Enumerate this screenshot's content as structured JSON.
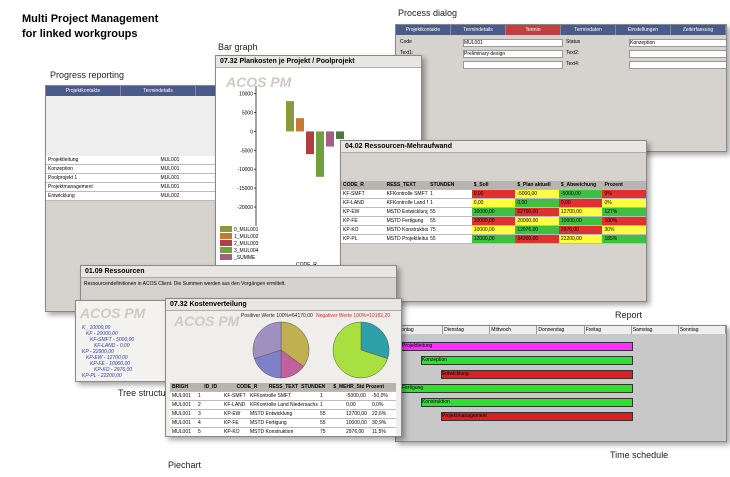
{
  "heading": [
    "Multi Project Management",
    "for linked workgroups"
  ],
  "captions": {
    "process_dialog": "Process dialog",
    "bar_graph": "Bar graph",
    "progress_reporting": "Progress reporting",
    "report": "Report",
    "tree_structure": "Tree structure",
    "piechart": "Piechart",
    "time_schedule": "Time schedule"
  },
  "process_dialog": {
    "tabs": [
      "Projektkontakte",
      "Termindetails",
      "Termin",
      "Termindaten",
      "Einstellungen",
      "Zeiterfassung"
    ],
    "fields": [
      "Code",
      "Status",
      "Text1:",
      "Text2:",
      "Text3:",
      "Text4:"
    ],
    "texts": [
      "MUL001",
      "Konzeption",
      "Preliminary design"
    ]
  },
  "bar_graph": {
    "title": "07.32 Plankosten je Projekt / Poolprojekt",
    "logo": "ACOS PM",
    "ylim": [
      -25000,
      12000
    ],
    "yticks": [
      10000,
      5000,
      0,
      -5000,
      -10000,
      -15000,
      -20000
    ],
    "values": [
      8000,
      3500,
      -6000,
      -12000,
      -4000,
      -2000
    ],
    "colors": [
      "#8a9a3a",
      "#c87830",
      "#b04040",
      "#70a040",
      "#a06080",
      "#4a7a40"
    ],
    "legend": [
      "0_MUL001",
      "1_MUL002",
      "2_MUL003",
      "3_MUL004",
      "_SUMME"
    ],
    "xlabel": "CODE_R"
  },
  "progress": {
    "tabs": [
      "Projektkontakte",
      "Termindetails",
      "Termin"
    ],
    "rows": [
      [
        "Projektleitung",
        "MUL001"
      ],
      [
        "Konzeption",
        "MUL001"
      ],
      [
        "Poolprojekt 1",
        "MUL001"
      ],
      [
        "Projektmanagement",
        "MUL001"
      ],
      [
        "Entwicklung",
        "MUL002"
      ]
    ]
  },
  "resources": {
    "title": "04.02 Ressourcen-Mehraufwand",
    "columns": [
      "CODE_R",
      "RESS_TEXT",
      "STUNDEN",
      "$_Soll",
      "$_Plan aktuell",
      "$_Abweichung",
      "Prozent"
    ],
    "rows": [
      [
        "KF-SMFT",
        "KFKontrolle SMFT",
        "1",
        "0,00",
        "-5000,00",
        "-5000,00",
        "0%"
      ],
      [
        "KF-LAND",
        "KFKontrolle Land Niedersachsen",
        "1",
        "0,00",
        "0,00",
        "0,00",
        "0%"
      ],
      [
        "KP-EW",
        "MSTD Entwicklung",
        "55",
        "10000,00",
        "22700,00",
        "12700,00",
        "127%"
      ],
      [
        "KP-FE",
        "MSTD Fertigung",
        "55",
        "10000,00",
        "20000,00",
        "10000,00",
        "100%"
      ],
      [
        "KP-KO",
        "MSTD Konstruktion",
        "75",
        "10000,00",
        "12976,00",
        "2976,00",
        "30%"
      ],
      [
        "KP-PL",
        "MSTD Projektleitung",
        "55",
        "12000,00",
        "34200,00",
        "22200,00",
        "185%"
      ]
    ]
  },
  "ressourcen": {
    "title": "01.09 Ressourcen",
    "text": "Ressourcendefinitionen in ACOS Client. Die Summen werden aus den Vorgängen ermittelt."
  },
  "tree": {
    "logo": "ACOS PM",
    "items": [
      "K_ 10000,00",
      "KF - 20000,00",
      "KF-SMFT - 5000,00",
      "KF-LAND - 0,00",
      "KP - 22900,00",
      "KP-EW - 12700,00",
      "KP-FE - 10000,00",
      "KP-KO - 2976,00",
      "KP-PL - 22200,00"
    ]
  },
  "gantt": {
    "days": [
      "Montag",
      "Dienstag",
      "Mittwoch",
      "Donnerstag",
      "Freitag",
      "Samstag",
      "Sonntag"
    ],
    "bars": [
      "Projektleitung",
      "Konzeption",
      "Entwicklung",
      "Fertigung",
      "Konstruktion",
      "Projektmanagement"
    ]
  },
  "pie": {
    "title": "07.32 Kostenverteilung",
    "logo": "ACOS PM",
    "legend": [
      "Positiver Werte 100%=64170,00",
      "Negativer Werte 100%=10182,20"
    ],
    "left": {
      "values": [
        35,
        15,
        20,
        30
      ],
      "colors": [
        "#c0b050",
        "#c060a0",
        "#8080c8",
        "#a090c0"
      ]
    },
    "right": {
      "values": [
        30,
        70
      ],
      "colors": [
        "#30a0a8",
        "#a8e040"
      ]
    },
    "columns": [
      "BRIGH",
      "ID_ID",
      "CODE_R",
      "RESS_TEXT",
      "STUNDEN",
      "$_MEHR_Std",
      "Prozent"
    ],
    "rows": [
      [
        "MUL001",
        "1",
        "KF-SMFT",
        "KFKontrolle SMFT",
        "1",
        "-5000,00",
        "-50,0%"
      ],
      [
        "MUL001",
        "2",
        "KF-LAND",
        "KFKontrolle Land Niedersachsen",
        "1",
        "0,00",
        "0,0%"
      ],
      [
        "MUL001",
        "3",
        "KP-EW",
        "MSTD Entwicklung",
        "55",
        "12700,00",
        "22,6%"
      ],
      [
        "MUL001",
        "4",
        "KP-FE",
        "MSTD Fertigung",
        "55",
        "10000,00",
        "30,9%"
      ],
      [
        "MUL001",
        "5",
        "KP-KO",
        "MSTD Konstruktion",
        "75",
        "2976,00",
        "11,5%"
      ],
      [
        "MUL001",
        "6",
        "KP-PL",
        "MSTD Projektleitung",
        "55",
        "22200,00",
        "14,5%"
      ]
    ]
  }
}
